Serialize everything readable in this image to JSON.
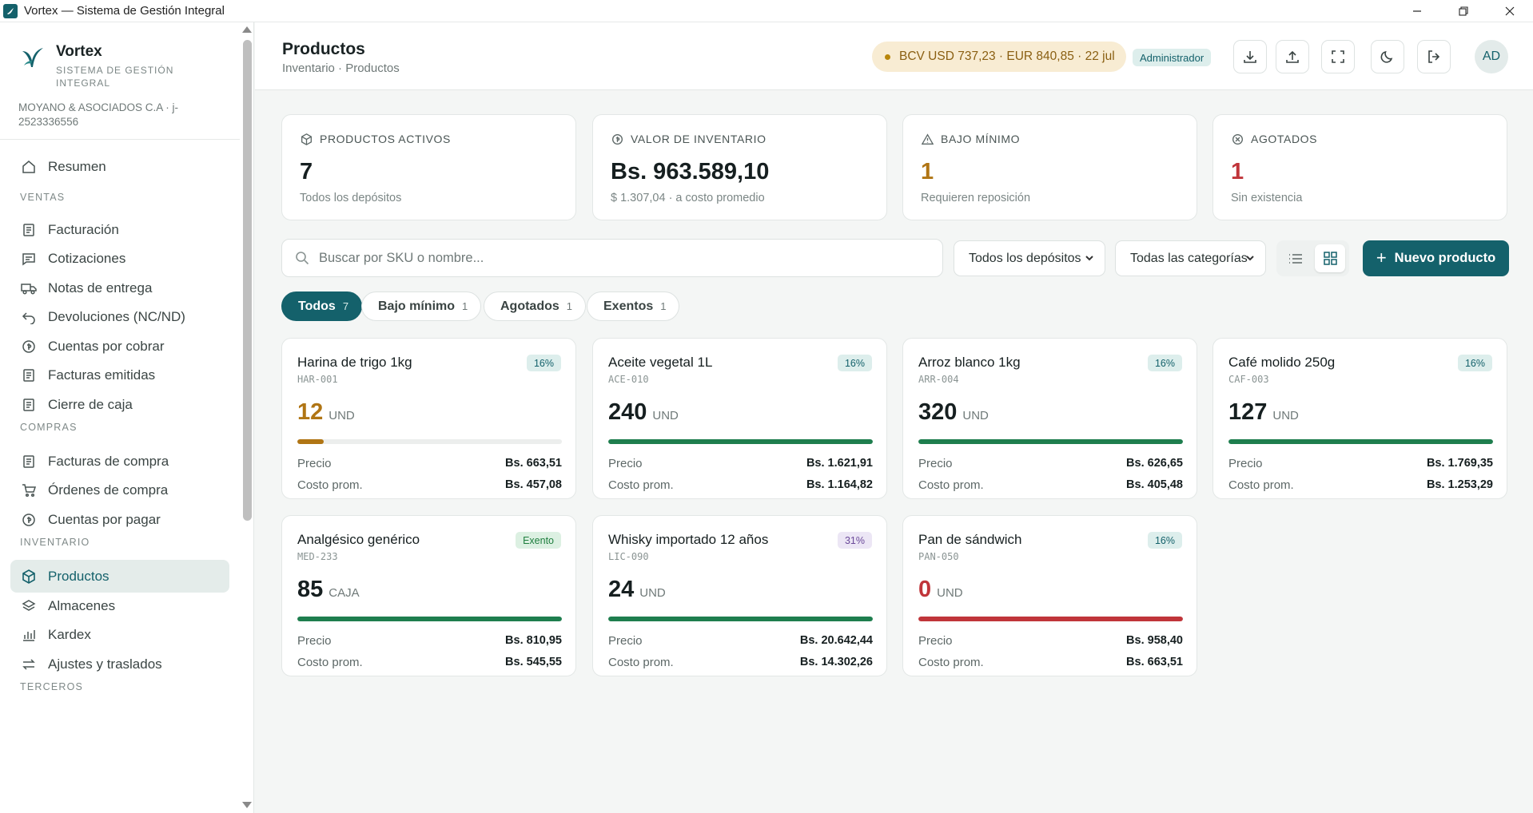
{
  "window": {
    "title": "Vortex — Sistema de Gestión Integral"
  },
  "brand": {
    "name": "Vortex",
    "subtitle": "SISTEMA DE GESTIÓN INTEGRAL",
    "company": "MOYANO & ASOCIADOS C.A · j-2523336556"
  },
  "nav": {
    "home": "Resumen",
    "sections": {
      "ventas": "VENTAS",
      "compras": "COMPRAS",
      "inventario": "INVENTARIO",
      "terceros": "TERCEROS"
    },
    "ventas_items": [
      "Facturación",
      "Cotizaciones",
      "Notas de entrega",
      "Devoluciones (NC/ND)",
      "Cuentas por cobrar",
      "Facturas emitidas",
      "Cierre de caja"
    ],
    "compras_items": [
      "Facturas de compra",
      "Órdenes de compra",
      "Cuentas por pagar"
    ],
    "inventario_items": [
      "Productos",
      "Almacenes",
      "Kardex",
      "Ajustes y traslados"
    ],
    "active": "Productos"
  },
  "header": {
    "title": "Productos",
    "breadcrumb": "Inventario · Productos",
    "rate": "BCV USD 737,23 · EUR 840,85 · 22 jul",
    "role": "Administrador",
    "avatar": "AD",
    "accent": "#14616b"
  },
  "stats": [
    {
      "label": "PRODUCTOS ACTIVOS",
      "value": "7",
      "sub": "Todos los depósitos",
      "icon": "box-icon"
    },
    {
      "label": "VALOR DE INVENTARIO",
      "value": "Bs. 963.589,10",
      "sub": "$ 1.307,04 · a costo promedio",
      "icon": "coin-icon"
    },
    {
      "label": "BAJO MÍNIMO",
      "value": "1",
      "sub": "Requieren reposición",
      "icon": "warning-icon"
    },
    {
      "label": "AGOTADOS",
      "value": "1",
      "sub": "Sin existencia",
      "icon": "x-circle-icon"
    }
  ],
  "toolbar": {
    "search_placeholder": "Buscar por SKU o nombre...",
    "warehouse_select": "Todos los depósitos",
    "category_select": "Todas las categorías",
    "new_button": "Nuevo producto"
  },
  "filters": [
    {
      "label": "Todos",
      "count": "7",
      "active": true
    },
    {
      "label": "Bajo mínimo",
      "count": "1",
      "active": false
    },
    {
      "label": "Agotados",
      "count": "1",
      "active": false
    },
    {
      "label": "Exentos",
      "count": "1",
      "active": false
    }
  ],
  "labels": {
    "price": "Precio",
    "cost": "Costo prom."
  },
  "products": [
    {
      "name": "Harina de trigo 1kg",
      "sku": "HAR-001",
      "tax": "16%",
      "qty": "12",
      "unit": "UND",
      "stock_level": 0.1,
      "status": "warn",
      "price": "Bs. 663,51",
      "cost": "Bs. 457,08"
    },
    {
      "name": "Aceite vegetal 1L",
      "sku": "ACE-010",
      "tax": "16%",
      "qty": "240",
      "unit": "UND",
      "stock_level": 1.0,
      "status": "ok",
      "price": "Bs. 1.621,91",
      "cost": "Bs. 1.164,82"
    },
    {
      "name": "Arroz blanco 1kg",
      "sku": "ARR-004",
      "tax": "16%",
      "qty": "320",
      "unit": "UND",
      "stock_level": 1.0,
      "status": "ok",
      "price": "Bs. 626,65",
      "cost": "Bs. 405,48"
    },
    {
      "name": "Café molido 250g",
      "sku": "CAF-003",
      "tax": "16%",
      "qty": "127",
      "unit": "UND",
      "stock_level": 1.0,
      "status": "ok",
      "price": "Bs. 1.769,35",
      "cost": "Bs. 1.253,29"
    },
    {
      "name": "Analgésico genérico",
      "sku": "MED-233",
      "tax": "Exento",
      "qty": "85",
      "unit": "CAJA",
      "stock_level": 1.0,
      "status": "ok",
      "price": "Bs. 810,95",
      "cost": "Bs. 545,55"
    },
    {
      "name": "Whisky importado 12 años",
      "sku": "LIC-090",
      "tax": "31%",
      "qty": "24",
      "unit": "UND",
      "stock_level": 1.0,
      "status": "ok",
      "price": "Bs. 20.642,44",
      "cost": "Bs. 14.302,26"
    },
    {
      "name": "Pan de sándwich",
      "sku": "PAN-050",
      "tax": "16%",
      "qty": "0",
      "unit": "UND",
      "stock_level": 1.0,
      "status": "out",
      "price": "Bs. 958,40",
      "cost": "Bs. 663,51"
    }
  ]
}
